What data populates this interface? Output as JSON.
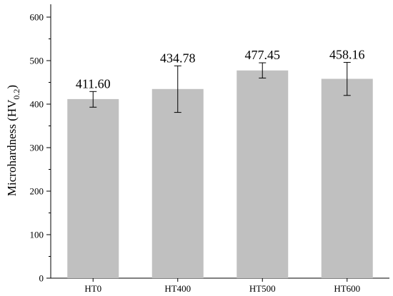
{
  "chart_data": {
    "type": "bar",
    "categories": [
      "HT0",
      "HT400",
      "HT500",
      "HT600"
    ],
    "values": [
      411.6,
      434.78,
      477.45,
      458.16
    ],
    "error_low": [
      393,
      381,
      460,
      420
    ],
    "error_high": [
      429,
      488,
      495,
      496
    ],
    "data_labels": [
      "411.60",
      "434.78",
      "477.45",
      "458.16"
    ],
    "ylabel": {
      "main": "Microhardness (HV",
      "subscript": "0.2",
      "close": ")"
    },
    "xlabel": "",
    "ylim": [
      0,
      600
    ],
    "yticks": [
      0,
      100,
      200,
      300,
      400,
      500,
      600
    ],
    "grid": false,
    "legend": "none",
    "colors": {
      "bar": "#c0c0c0",
      "error_bar": "#000000",
      "axis": "#000000"
    }
  }
}
